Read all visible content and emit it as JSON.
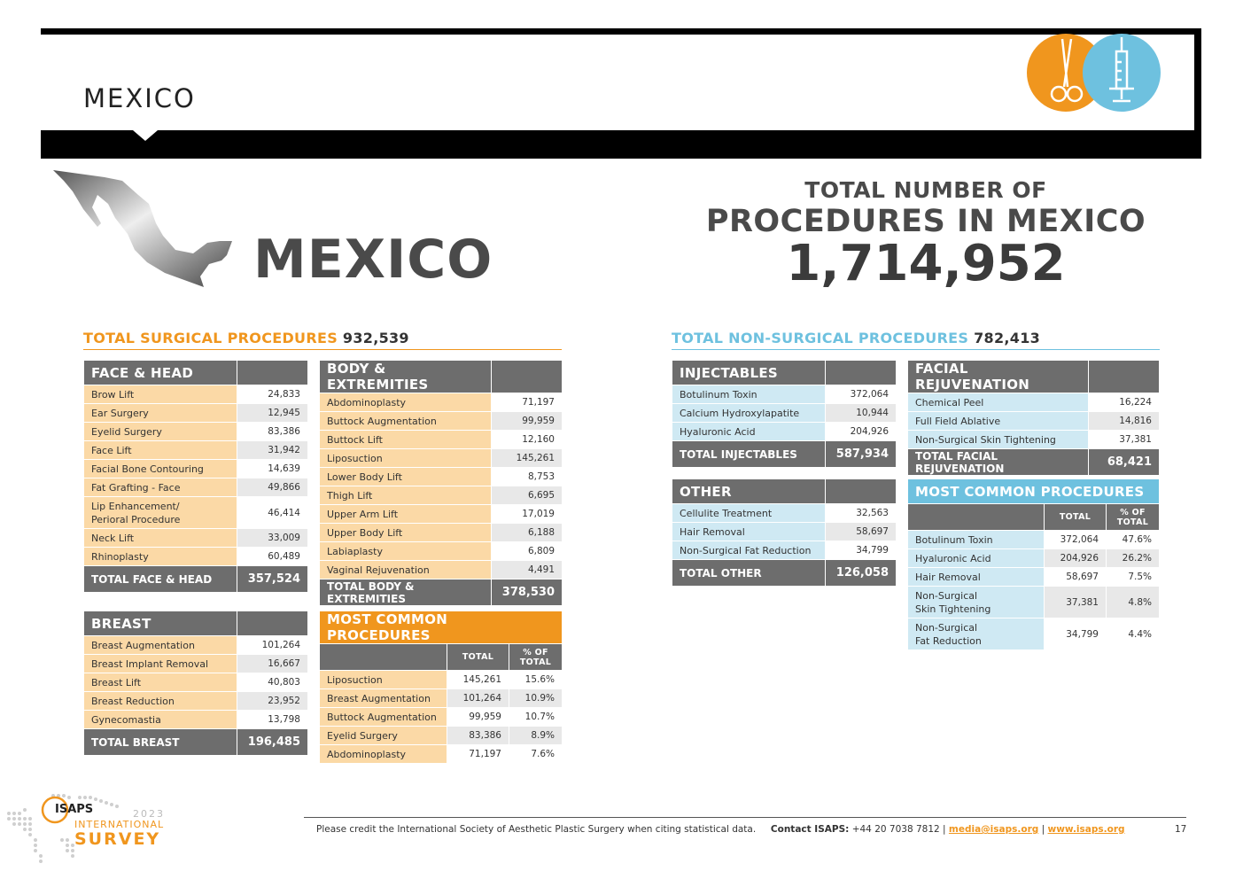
{
  "header": {
    "title": "MEXICO",
    "icons": [
      "scissors-icon",
      "syringe-icon"
    ],
    "colors": {
      "orange": "#f0961e",
      "blue": "#6ec1df",
      "gray": "#6d6d6d"
    }
  },
  "country": "MEXICO",
  "total": {
    "line1": "TOTAL NUMBER OF",
    "line2": "PROCEDURES IN MEXICO",
    "value": "1,714,952"
  },
  "surgical": {
    "label": "TOTAL SURGICAL PROCEDURES",
    "value": "932,539"
  },
  "nonsurgical": {
    "label": "TOTAL NON-SURGICAL PROCEDURES",
    "value": "782,413"
  },
  "face_head": {
    "title": "FACE & HEAD",
    "rows": [
      {
        "l": "Brow Lift",
        "v": "24,833"
      },
      {
        "l": "Ear Surgery",
        "v": "12,945"
      },
      {
        "l": "Eyelid Surgery",
        "v": "83,386"
      },
      {
        "l": "Face Lift",
        "v": "31,942"
      },
      {
        "l": "Facial Bone Contouring",
        "v": "14,639"
      },
      {
        "l": "Fat Grafting - Face",
        "v": "49,866"
      },
      {
        "l": "Lip Enhancement/",
        "l2": "Perioral Procedure",
        "v": "46,414"
      },
      {
        "l": "Neck Lift",
        "v": "33,009"
      },
      {
        "l": "Rhinoplasty",
        "v": "60,489"
      }
    ],
    "total_label": "TOTAL FACE & HEAD",
    "total": "357,524"
  },
  "body": {
    "title": "BODY & EXTREMITIES",
    "rows": [
      {
        "l": "Abdominoplasty",
        "v": "71,197"
      },
      {
        "l": "Buttock Augmentation",
        "v": "99,959"
      },
      {
        "l": "Buttock Lift",
        "v": "12,160"
      },
      {
        "l": "Liposuction",
        "v": "145,261"
      },
      {
        "l": "Lower Body Lift",
        "v": "8,753"
      },
      {
        "l": "Thigh Lift",
        "v": "6,695"
      },
      {
        "l": "Upper Arm Lift",
        "v": "17,019"
      },
      {
        "l": "Upper Body Lift",
        "v": "6,188"
      },
      {
        "l": "Labiaplasty",
        "v": "6,809"
      },
      {
        "l": "Vaginal Rejuvenation",
        "v": "4,491"
      }
    ],
    "total_label": "TOTAL BODY & EXTREMITIES",
    "total": "378,530"
  },
  "breast": {
    "title": "BREAST",
    "rows": [
      {
        "l": "Breast Augmentation",
        "v": "101,264"
      },
      {
        "l": "Breast Implant Removal",
        "v": "16,667"
      },
      {
        "l": "Breast Lift",
        "v": "40,803"
      },
      {
        "l": "Breast Reduction",
        "v": "23,952"
      },
      {
        "l": "Gynecomastia",
        "v": "13,798"
      }
    ],
    "total_label": "TOTAL BREAST",
    "total": "196,485"
  },
  "common_surg": {
    "title": "MOST COMMON PROCEDURES",
    "col_total": "TOTAL",
    "col_pct1": "% OF",
    "col_pct2": "TOTAL",
    "rows": [
      {
        "l": "Liposuction",
        "v": "145,261",
        "p": "15.6%"
      },
      {
        "l": "Breast Augmentation",
        "v": "101,264",
        "p": "10.9%"
      },
      {
        "l": "Buttock Augmentation",
        "v": "99,959",
        "p": "10.7%"
      },
      {
        "l": "Eyelid Surgery",
        "v": "83,386",
        "p": "8.9%"
      },
      {
        "l": "Abdominoplasty",
        "v": "71,197",
        "p": "7.6%"
      }
    ]
  },
  "injectables": {
    "title": "INJECTABLES",
    "rows": [
      {
        "l": "Botulinum Toxin",
        "v": "372,064"
      },
      {
        "l": "Calcium Hydroxylapatite",
        "v": "10,944"
      },
      {
        "l": "Hyaluronic Acid",
        "v": "204,926"
      }
    ],
    "total_label": "TOTAL INJECTABLES",
    "total": "587,934"
  },
  "facial": {
    "title": "FACIAL REJUVENATION",
    "rows": [
      {
        "l": "Chemical Peel",
        "v": "16,224"
      },
      {
        "l": "Full Field Ablative",
        "v": "14,816"
      },
      {
        "l": "Non-Surgical Skin Tightening",
        "v": "37,381"
      }
    ],
    "total_label": "TOTAL FACIAL REJUVENATION",
    "total": "68,421"
  },
  "other": {
    "title": "OTHER",
    "rows": [
      {
        "l": "Cellulite Treatment",
        "v": "32,563"
      },
      {
        "l": "Hair Removal",
        "v": "58,697"
      },
      {
        "l": "Non-Surgical Fat Reduction",
        "v": "34,799"
      }
    ],
    "total_label": "TOTAL OTHER",
    "total": "126,058"
  },
  "common_non": {
    "title": "MOST COMMON PROCEDURES",
    "col_total": "TOTAL",
    "col_pct1": "% OF",
    "col_pct2": "TOTAL",
    "rows": [
      {
        "l": "Botulinum Toxin",
        "v": "372,064",
        "p": "47.6%"
      },
      {
        "l": "Hyaluronic Acid",
        "v": "204,926",
        "p": "26.2%"
      },
      {
        "l": "Hair Removal",
        "v": "58,697",
        "p": "7.5%"
      },
      {
        "l": "Non-Surgical",
        "l2": "Skin Tightening",
        "v": "37,381",
        "p": "4.8%"
      },
      {
        "l": "Non-Surgical",
        "l2": "Fat Reduction",
        "v": "34,799",
        "p": "4.4%"
      }
    ]
  },
  "footer": {
    "credit": "Please credit the International Society of Aesthetic Plastic Surgery when citing statistical data.",
    "contact_label": "Contact ISAPS:",
    "phone": "+44 20 7038 7812 |",
    "email": "media@isaps.org",
    "sep": "|",
    "web": "www.isaps.org",
    "page": "17"
  },
  "logo": {
    "name": "ISAPS",
    "year": "2023",
    "line1": "INTERNATIONAL",
    "line2": "SURVEY"
  }
}
